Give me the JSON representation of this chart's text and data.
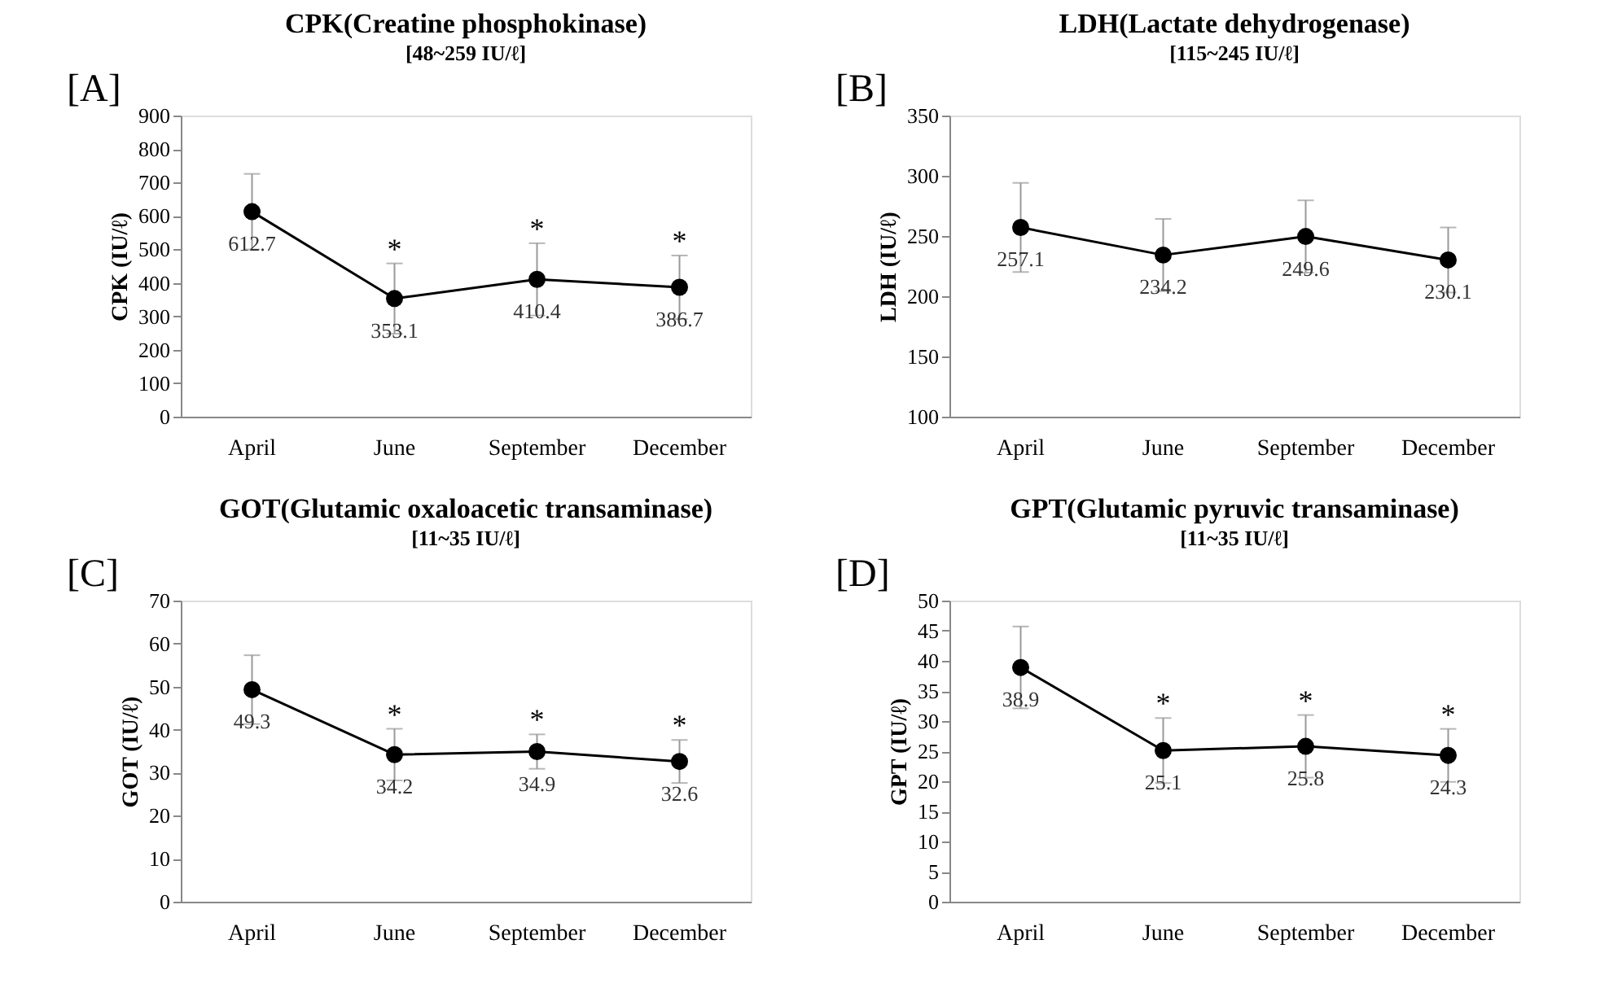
{
  "chart_data": [
    {
      "type": "line",
      "title": "CPK(Creatine phosphokinase)",
      "subtitle": "[48~259 IU/ℓ]",
      "ylabel": "CPK  (IU/ℓ)",
      "categories": [
        "April",
        "June",
        "September",
        "December"
      ],
      "series": [
        {
          "color": "#000000",
          "values": [
            612.7,
            353.1,
            410.4,
            386.7
          ],
          "errors": [
            113,
            105,
            108,
            95
          ]
        }
      ],
      "ylim": [
        0,
        900
      ],
      "yticks": [
        0,
        100,
        200,
        300,
        400,
        500,
        600,
        700,
        800,
        900
      ],
      "grid": false,
      "marker": "circle",
      "line_style": "solid",
      "data_labels": true,
      "annotations": [
        "[A]",
        {
          "text": "*",
          "x": "June",
          "y": 458.1
        },
        {
          "text": "*",
          "x": "September",
          "y": 518.4
        },
        {
          "text": "*",
          "x": "December",
          "y": 481.7
        }
      ]
    },
    {
      "type": "line",
      "title": "LDH(Lactate dehydrogenase)",
      "subtitle": "[115~245 IU/ℓ]",
      "ylabel": "LDH (IU/ℓ)",
      "categories": [
        "April",
        "June",
        "September",
        "December"
      ],
      "series": [
        {
          "color": "#000000",
          "values": [
            257.1,
            234.2,
            249.6,
            230.1
          ],
          "errors": [
            37,
            30,
            30,
            27
          ]
        }
      ],
      "ylim": [
        100,
        350
      ],
      "yticks": [
        100,
        150,
        200,
        250,
        300,
        350
      ],
      "grid": false,
      "marker": "circle",
      "line_style": "solid",
      "data_labels": true,
      "annotations": [
        "[B]"
      ]
    },
    {
      "type": "line",
      "title": "GOT(Glutamic oxaloacetic transaminase)",
      "subtitle": "[11~35 IU/ℓ]",
      "ylabel": "GOT (IU/ℓ)",
      "categories": [
        "April",
        "June",
        "September",
        "December"
      ],
      "series": [
        {
          "color": "#000000",
          "values": [
            49.3,
            34.2,
            34.9,
            32.6
          ],
          "errors": [
            8,
            6,
            4,
            5
          ]
        }
      ],
      "ylim": [
        0,
        70
      ],
      "yticks": [
        0,
        10,
        20,
        30,
        40,
        50,
        60,
        70
      ],
      "grid": false,
      "marker": "circle",
      "line_style": "solid",
      "data_labels": true,
      "annotations": [
        "[C]",
        {
          "text": "*",
          "x": "June",
          "y": 40.2
        },
        {
          "text": "*",
          "x": "September",
          "y": 38.9
        },
        {
          "text": "*",
          "x": "December",
          "y": 37.6
        }
      ]
    },
    {
      "type": "line",
      "title": "GPT(Glutamic pyruvic transaminase)",
      "subtitle": "[11~35 IU/ℓ]",
      "ylabel": "GPT (IU/ℓ)",
      "categories": [
        "April",
        "June",
        "September",
        "December"
      ],
      "series": [
        {
          "color": "#000000",
          "values": [
            38.9,
            25.1,
            25.8,
            24.3
          ],
          "errors": [
            6.8,
            5.4,
            5.2,
            4.4
          ]
        }
      ],
      "ylim": [
        0,
        50
      ],
      "yticks": [
        0,
        5,
        10,
        15,
        20,
        25,
        30,
        35,
        40,
        45,
        50
      ],
      "grid": false,
      "marker": "circle",
      "line_style": "solid",
      "data_labels": true,
      "annotations": [
        "[D]",
        {
          "text": "*",
          "x": "June",
          "y": 30.5
        },
        {
          "text": "*",
          "x": "September",
          "y": 31.0
        },
        {
          "text": "*",
          "x": "December",
          "y": 28.7
        }
      ]
    }
  ]
}
